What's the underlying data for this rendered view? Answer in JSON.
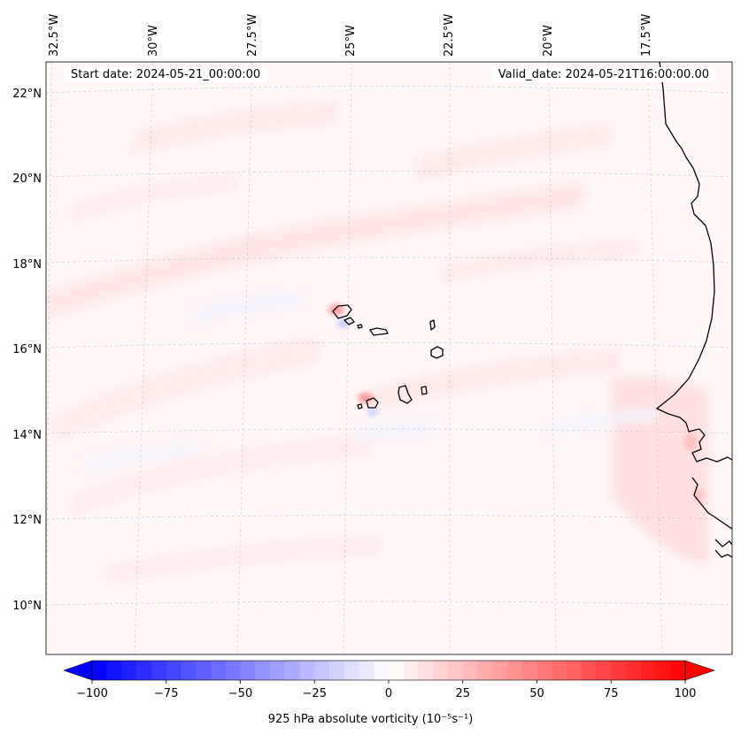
{
  "map": {
    "longitude_labels": [
      "32.5°W",
      "30°W",
      "27.5°W",
      "25°W",
      "22.5°W",
      "20°W",
      "17.5°W"
    ],
    "latitude_labels": [
      "22°N",
      "20°N",
      "18°N",
      "16°N",
      "14°N",
      "12°N",
      "10°N"
    ],
    "start_date": "Start date: 2024-05-21_00:00:00",
    "valid_date": "Valid_date: 2024-05-21T16:00:00.00",
    "field_colors": {
      "background": "#fff6f6",
      "light_positive": "#ffe4e4",
      "moderate_positive": "#ffcccc",
      "light_negative": "#eef0ff",
      "negative": "#c8ccff",
      "coastline": "#000000",
      "gridline": "#cccccc"
    }
  },
  "colorbar": {
    "tick_labels": [
      "−100",
      "−75",
      "−50",
      "−25",
      "0",
      "25",
      "50",
      "75",
      "100"
    ],
    "min": -100,
    "max": 100,
    "step": 5,
    "colors": {
      "negative_end": "#0000ff",
      "zero": "#ffffff",
      "positive_end": "#ff0000"
    },
    "label": "925 hPa absolute vorticity (10⁻⁵s⁻¹)"
  }
}
